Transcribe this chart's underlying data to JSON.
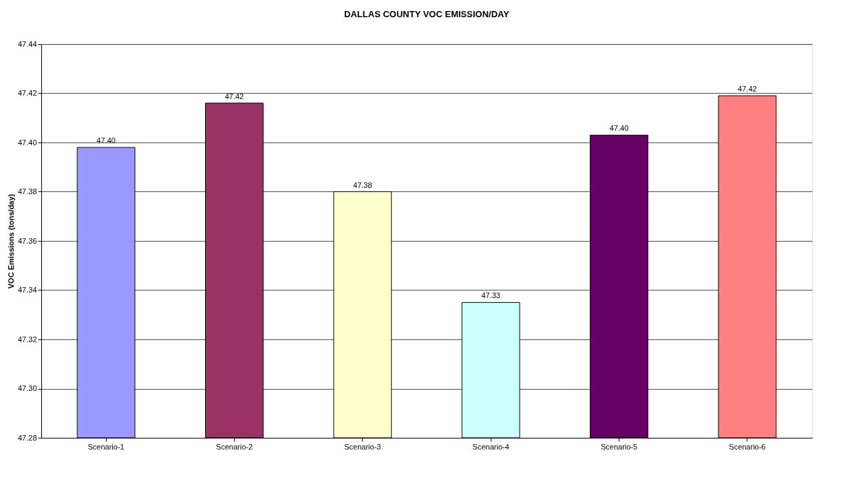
{
  "chart_data": {
    "type": "bar",
    "title": "DALLAS COUNTY VOC EMISSION/DAY",
    "ylabel": "VOC Emissions (tons/day)",
    "categories": [
      "Scenario-1",
      "Scenario-2",
      "Scenario-3",
      "Scenario-4",
      "Scenario-5",
      "Scenario-6"
    ],
    "values": [
      47.398,
      47.416,
      47.38,
      47.335,
      47.403,
      47.419
    ],
    "value_labels": [
      "47.40",
      "47.42",
      "47.38",
      "47.33",
      "47.40",
      "47.42"
    ],
    "colors": [
      "#9999ff",
      "#993366",
      "#ffffcc",
      "#ccffff",
      "#660066",
      "#ff8080"
    ],
    "ylim": [
      47.28,
      47.44
    ],
    "yticks": [
      47.28,
      {
        "value": 47.3,
        "label": "47.30"
      },
      47.32,
      47.34,
      47.36,
      47.38,
      {
        "value": 47.4,
        "label": "47.40"
      },
      47.42,
      47.44
    ],
    "grid": "y",
    "legend": false
  }
}
